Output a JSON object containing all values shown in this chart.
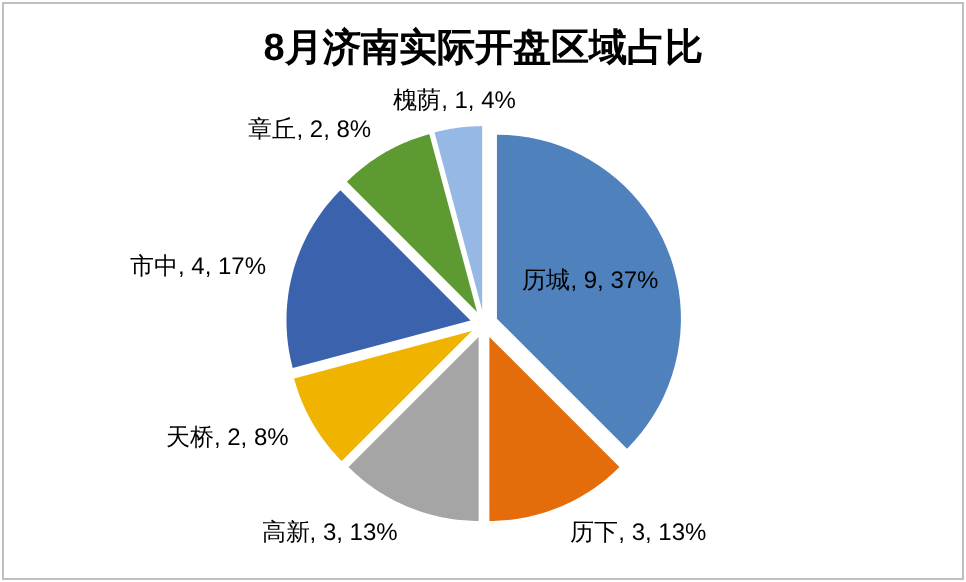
{
  "chart_data": {
    "type": "pie",
    "title": "8月济南实际开盘区域占比",
    "categories": [
      "历城",
      "历下",
      "高新",
      "天桥",
      "市中",
      "章丘",
      "槐荫"
    ],
    "values": [
      9,
      3,
      3,
      2,
      4,
      2,
      1
    ],
    "value_labels": [
      "9, 37%",
      "3, 13%",
      "3, 13%",
      "2, 8%",
      "4, 17%",
      "2, 8%",
      "1, 4%"
    ],
    "colors": [
      "#4f81bd",
      "#e46c0a",
      "#a5a5a5",
      "#f0b400",
      "#3a62ad",
      "#5e9a32",
      "#95b9e4"
    ]
  }
}
